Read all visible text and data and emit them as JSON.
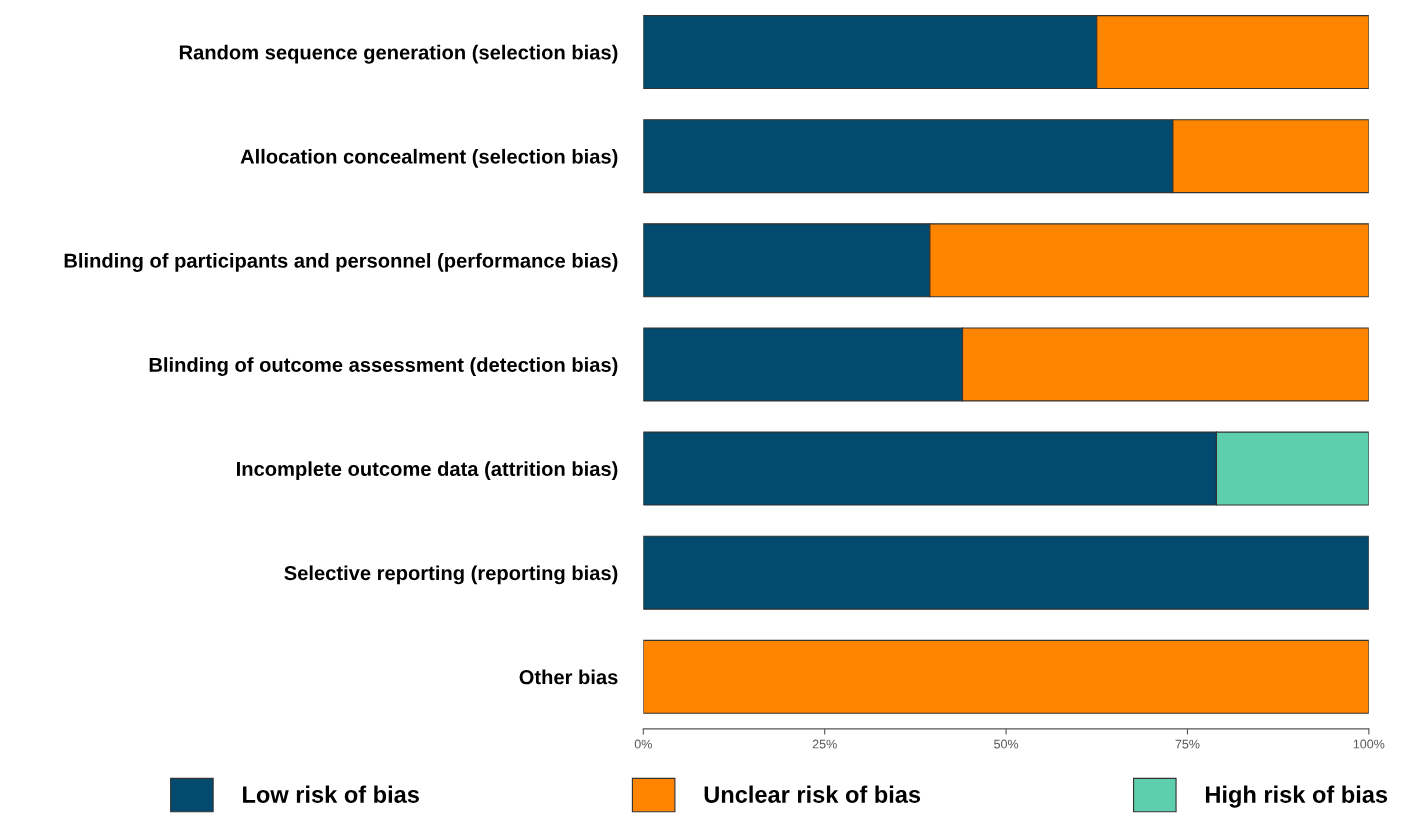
{
  "chart_data": {
    "type": "bar",
    "orientation": "horizontal",
    "stacked": true,
    "categories": [
      "Random sequence generation (selection bias)",
      "Allocation concealment (selection bias)",
      "Blinding of participants and personnel (performance bias)",
      "Blinding of outcome assessment (detection bias)",
      "Incomplete outcome data (attrition bias)",
      "Selective reporting (reporting bias)",
      "Other bias"
    ],
    "series": [
      {
        "name": "Low risk of bias",
        "color": "#024b6e",
        "values": [
          62.5,
          73,
          39.5,
          44,
          79,
          100,
          0
        ]
      },
      {
        "name": "Unclear risk of bias",
        "color": "#ff8500",
        "values": [
          37.5,
          27,
          60.5,
          56,
          0,
          0,
          100
        ]
      },
      {
        "name": "High risk of bias",
        "color": "#5ecfad",
        "values": [
          0,
          0,
          0,
          0,
          21,
          0,
          0
        ]
      }
    ],
    "xlim": [
      0,
      100
    ],
    "xticks": [
      {
        "value": 0,
        "label": "0%"
      },
      {
        "value": 25,
        "label": "25%"
      },
      {
        "value": 50,
        "label": "50%"
      },
      {
        "value": 75,
        "label": "75%"
      },
      {
        "value": 100,
        "label": "100%"
      }
    ],
    "grid": false,
    "legend": "bottom"
  }
}
